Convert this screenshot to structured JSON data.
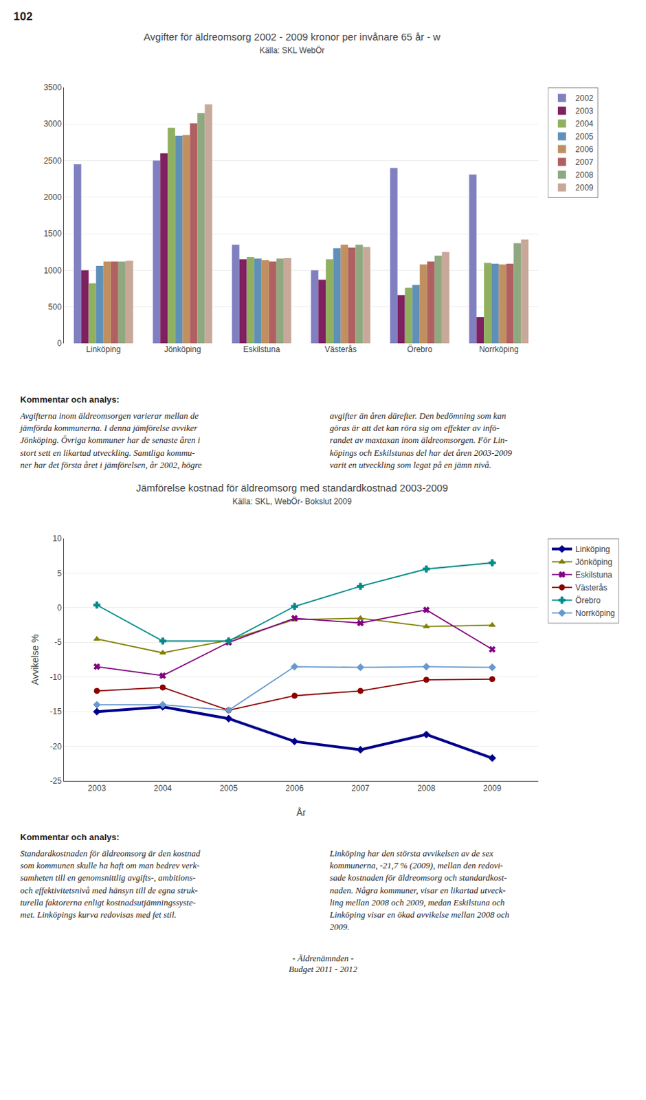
{
  "page_number": "102",
  "chart_data": [
    {
      "type": "bar",
      "title": "Avgifter för äldreomsorg 2002 - 2009 kronor per invånare 65 år - w",
      "subtitle": "Källa: SKL WebÖr",
      "categories": [
        "Linköping",
        "Jönköping",
        "Eskilstuna",
        "Västerås",
        "Örebro",
        "Norrköping"
      ],
      "series": [
        {
          "name": "2002",
          "color": "#8080c0",
          "values": [
            2450,
            2500,
            1350,
            1000,
            2400,
            2310
          ]
        },
        {
          "name": "2003",
          "color": "#7f2060",
          "values": [
            1000,
            2600,
            1150,
            870,
            660,
            360
          ]
        },
        {
          "name": "2004",
          "color": "#90b060",
          "values": [
            820,
            2950,
            1180,
            1150,
            760,
            1100
          ]
        },
        {
          "name": "2005",
          "color": "#6090b8",
          "values": [
            1060,
            2840,
            1160,
            1300,
            800,
            1090
          ]
        },
        {
          "name": "2006",
          "color": "#c09060",
          "values": [
            1120,
            2850,
            1140,
            1350,
            1080,
            1080
          ]
        },
        {
          "name": "2007",
          "color": "#b06060",
          "values": [
            1120,
            3010,
            1120,
            1310,
            1120,
            1090
          ]
        },
        {
          "name": "2008",
          "color": "#90a880",
          "values": [
            1120,
            3150,
            1160,
            1350,
            1200,
            1370
          ]
        },
        {
          "name": "2009",
          "color": "#c8a898",
          "values": [
            1130,
            3270,
            1170,
            1320,
            1250,
            1420
          ]
        }
      ],
      "ylim": [
        0,
        3500
      ],
      "yticks": [
        0,
        500,
        1000,
        1500,
        2000,
        2500,
        3000,
        3500
      ],
      "grid": true,
      "legend": "right"
    },
    {
      "type": "line",
      "title": "Jämförelse kostnad för äldreomsorg med standardkostnad 2003-2009",
      "subtitle": "Källa: SKL, WebÖr- Bokslut 2009",
      "x": [
        2003,
        2004,
        2005,
        2006,
        2007,
        2008,
        2009
      ],
      "series": [
        {
          "name": "Linköping",
          "color": "#00008B",
          "marker": "diamond",
          "line_style": "thick",
          "values": [
            -15.0,
            -14.3,
            -16.0,
            -19.3,
            -20.5,
            -18.3,
            -21.7
          ]
        },
        {
          "name": "Jönköping",
          "color": "#808000",
          "marker": "triangle-up",
          "line_style": "solid",
          "values": [
            -4.5,
            -6.5,
            -4.7,
            -1.7,
            -1.5,
            -2.7,
            -2.5
          ]
        },
        {
          "name": "Eskilstuna",
          "color": "#800080",
          "marker": "x",
          "line_style": "solid",
          "values": [
            -8.5,
            -9.8,
            -5.0,
            -1.5,
            -2.2,
            -0.3,
            -6.0
          ]
        },
        {
          "name": "Västerås",
          "color": "#8B0000",
          "marker": "circle",
          "line_style": "solid",
          "values": [
            -12.0,
            -11.5,
            -14.8,
            -12.7,
            -12.0,
            -10.4,
            -10.3
          ]
        },
        {
          "name": "Örebro",
          "color": "#008B8B",
          "marker": "cross",
          "line_style": "solid",
          "values": [
            0.4,
            -4.8,
            -4.8,
            0.2,
            3.1,
            5.6,
            6.5
          ]
        },
        {
          "name": "Norrköping",
          "color": "#6699CC",
          "marker": "diamond",
          "line_style": "solid",
          "values": [
            -14.0,
            -14.0,
            -14.8,
            -8.5,
            -8.6,
            -8.5,
            -8.6
          ]
        }
      ],
      "xlim": [
        2002.5,
        2009.7
      ],
      "xticks": [
        2003,
        2004,
        2005,
        2006,
        2007,
        2008,
        2009
      ],
      "ylim": [
        -25,
        10
      ],
      "yticks": [
        -25,
        -20,
        -15,
        -10,
        -5,
        0,
        5,
        10
      ],
      "xlabel": "År",
      "ylabel": "Avvikelse %",
      "grid": true,
      "legend": "right"
    }
  ],
  "text_blocks": [
    {
      "header": "Kommentar och analys:",
      "left": "Avgifterna inom äldreomsorgen varierar mellan de\njämförda kommunerna. I denna jämförelse avviker\nJönköping. Övriga kommuner har de senaste åren i\nstort sett en likartad utveckling. Samtliga kommu-\nner har det första året i jämförelsen, år 2002, högre",
      "right": "avgifter än åren därefter. Den bedömning som kan\ngöras är att det kan röra sig om effekter av infö-\nrandet av maxtaxan inom äldreomsorgen. För Lin-\nköpings och Eskilstunas del har det åren 2003-2009\nvarit en utveckling som legat på en jämn nivå."
    },
    {
      "header": "Kommentar och analys:",
      "left": "Standardkostnaden för äldreomsorg är den kostnad\nsom kommunen skulle ha haft om man bedrev verk-\nsamheten till en genomsnittlig avgifts-, ambitions-\noch effektivitetsnivå med hänsyn till de egna struk-\nturella faktorerna enligt kostnadsutjämningssyste-\nmet. Linköpings kurva redovisas med fet stil.",
      "right": "Linköping har den största avvikelsen av de sex\nkommunerna, -21,7 % (2009), mellan den redovi-\nsade kostnaden för äldreomsorg och standardkost-\nnaden. Några kommuner, visar en likartad utveck-\nling mellan 2008 och 2009, medan Eskilstuna och\nLinköping visar en ökad avvikelse mellan 2008 och\n2009."
    }
  ],
  "footer": "- Äldrenämnden -\nBudget 2011 - 2012"
}
